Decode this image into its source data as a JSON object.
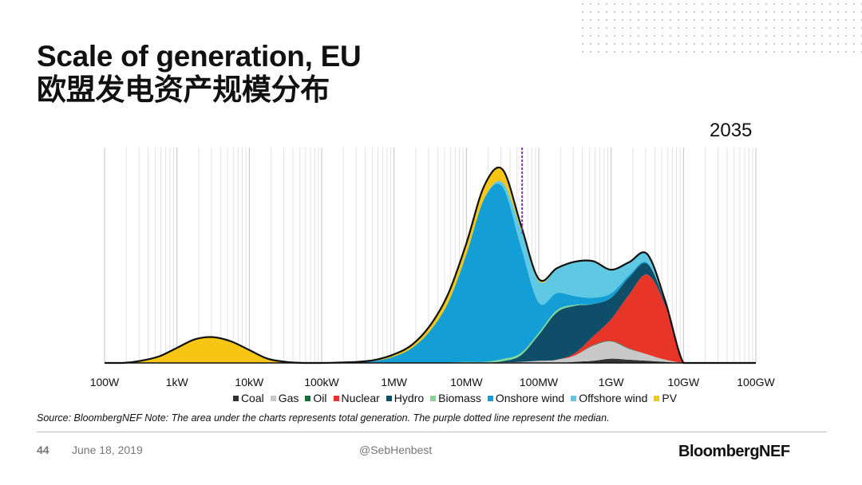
{
  "title_en": "Scale of generation, EU",
  "title_zh": "欧盟发电资产规模分布",
  "year": "2035",
  "chart_data": {
    "type": "area",
    "stacked": true,
    "xscale": "log10 watts",
    "x_ticks": [
      {
        "v": 2,
        "label": "100W"
      },
      {
        "v": 3,
        "label": "1kW"
      },
      {
        "v": 4,
        "label": "10kW"
      },
      {
        "v": 5,
        "label": "100kW"
      },
      {
        "v": 6,
        "label": "1MW"
      },
      {
        "v": 7,
        "label": "10MW"
      },
      {
        "v": 8,
        "label": "100MW"
      },
      {
        "v": 9,
        "label": "1GW"
      },
      {
        "v": 10,
        "label": "10GW"
      },
      {
        "v": 11,
        "label": "100GW"
      }
    ],
    "xlim": [
      2,
      11
    ],
    "ylim": [
      0,
      100
    ],
    "median_log10": 7.77,
    "x": [
      2,
      2.25,
      2.5,
      2.75,
      3,
      3.25,
      3.5,
      3.75,
      4,
      4.25,
      4.5,
      4.75,
      5,
      5.25,
      5.5,
      5.75,
      6,
      6.25,
      6.5,
      6.75,
      7,
      7.25,
      7.5,
      7.75,
      8,
      8.25,
      8.5,
      8.75,
      9,
      9.25,
      9.5,
      9.75,
      10,
      10.25,
      10.5,
      10.75,
      11
    ],
    "series": [
      {
        "name": "Coal",
        "color": "#333333",
        "values": [
          0,
          0,
          0,
          0,
          0,
          0,
          0,
          0,
          0,
          0,
          0,
          0,
          0,
          0,
          0,
          0,
          0,
          0,
          0,
          0,
          0,
          0,
          0,
          0,
          0,
          0,
          0.5,
          1,
          2,
          1.5,
          1,
          0.5,
          0,
          0,
          0,
          0,
          0
        ]
      },
      {
        "name": "Gas",
        "color": "#c8c8c8",
        "values": [
          0,
          0,
          0,
          0,
          0,
          0,
          0,
          0,
          0,
          0,
          0,
          0,
          0,
          0,
          0,
          0,
          0,
          0,
          0,
          0,
          0,
          0,
          0.3,
          0.5,
          1,
          1.5,
          3,
          7,
          8,
          5,
          3,
          1,
          0,
          0,
          0,
          0,
          0
        ]
      },
      {
        "name": "Oil",
        "color": "#1e6b3a",
        "values": [
          0,
          0,
          0,
          0,
          0,
          0,
          0,
          0,
          0,
          0,
          0,
          0,
          0,
          0,
          0,
          0,
          0,
          0,
          0,
          0,
          0,
          0,
          0,
          0,
          0,
          0,
          0,
          0.3,
          0.3,
          0.3,
          0,
          0,
          0,
          0,
          0,
          0,
          0
        ]
      },
      {
        "name": "Nuclear",
        "color": "#e8352a",
        "values": [
          0,
          0,
          0,
          0,
          0,
          0,
          0,
          0,
          0,
          0,
          0,
          0,
          0,
          0,
          0,
          0,
          0,
          0,
          0,
          0,
          0,
          0,
          0,
          0,
          0,
          0,
          1,
          4,
          10,
          25,
          37,
          25,
          0,
          0,
          0,
          0,
          0
        ]
      },
      {
        "name": "Hydro",
        "color": "#0f4e68",
        "values": [
          0,
          0,
          0,
          0,
          0,
          0,
          0,
          0,
          0,
          0,
          0,
          0,
          0,
          0,
          0,
          0,
          0,
          0,
          0,
          0,
          0,
          0,
          0.5,
          3,
          12,
          22,
          22,
          15,
          10,
          8,
          5,
          1,
          0,
          0,
          0,
          0,
          0
        ]
      },
      {
        "name": "Biomass",
        "color": "#7fd89a",
        "values": [
          0,
          0,
          0,
          0,
          0,
          0,
          0,
          0,
          0,
          0,
          0,
          0,
          0,
          0,
          0,
          0,
          0,
          0,
          0,
          0.2,
          0.5,
          0.5,
          1,
          1,
          1,
          1,
          0.5,
          0,
          0,
          0,
          0,
          0,
          0,
          0,
          0,
          0,
          0
        ]
      },
      {
        "name": "Onshore wind",
        "color": "#139fd6",
        "values": [
          0,
          0,
          0,
          0,
          0,
          0,
          0,
          0,
          0,
          0,
          0,
          0,
          0,
          0.2,
          0.3,
          1,
          3,
          7,
          15,
          28,
          50,
          76,
          80,
          50,
          14,
          8,
          4,
          3,
          2,
          1,
          0.5,
          0,
          0,
          0,
          0,
          0,
          0
        ]
      },
      {
        "name": "Offshore wind",
        "color": "#5fc8e2",
        "values": [
          0,
          0,
          0,
          0,
          0,
          0,
          0,
          0,
          0,
          0,
          0,
          0,
          0,
          0,
          0,
          0,
          0,
          0,
          0,
          0,
          0,
          0,
          2,
          8,
          10,
          11,
          16,
          17,
          11,
          6,
          4,
          1,
          0,
          0,
          0,
          0,
          0
        ]
      },
      {
        "name": "PV",
        "color": "#f7c614",
        "values": [
          0,
          0,
          1,
          3,
          7,
          11,
          12,
          10,
          6,
          2,
          0.5,
          0,
          0,
          0,
          0.2,
          0.5,
          1,
          1.5,
          2.5,
          4,
          5,
          6,
          6,
          2,
          1,
          0.5,
          0,
          0,
          0,
          0,
          0,
          0,
          0,
          0,
          0,
          0,
          0
        ]
      }
    ]
  },
  "legend_labels": [
    "Coal",
    "Gas",
    "Oil",
    "Nuclear",
    "Hydro",
    "Biomass",
    "Onshore wind",
    "Offshore wind",
    "PV"
  ],
  "source": "Source: BloombergNEF  Note: The area under the charts represents total generation. The purple dotted line represent the median.",
  "footer": {
    "page": "44",
    "date": "June 18, 2019",
    "handle": "@SebHenbest",
    "logo": "BloombergNEF"
  }
}
